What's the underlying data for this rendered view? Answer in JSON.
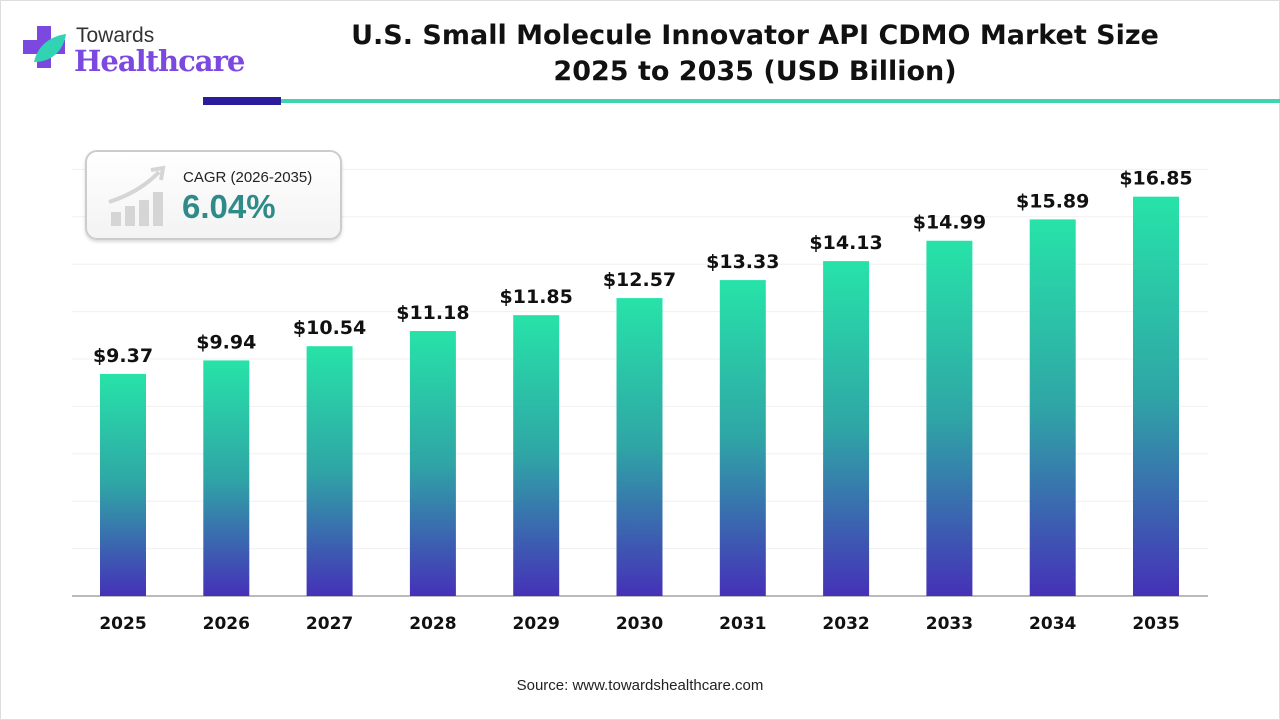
{
  "logo": {
    "line1": "Towards",
    "line2": "Healthcare"
  },
  "title": "U.S. Small Molecule Innovator API CDMO Market Size 2025 to 2035 (USD Billion)",
  "cagr": {
    "label": "CAGR (2026-2035)",
    "value": "6.04%"
  },
  "source": "Source: www.towardshealthcare.com",
  "colors": {
    "bar_top": "#27e3a8",
    "bar_bottom": "#4531b8",
    "cagr": "#2e8b88",
    "logo": "#7b48e0"
  },
  "chart_data": {
    "type": "bar",
    "title": "U.S. Small Molecule Innovator API CDMO Market Size 2025 to 2035 (USD Billion)",
    "categories": [
      "2025",
      "2026",
      "2027",
      "2028",
      "2029",
      "2030",
      "2031",
      "2032",
      "2033",
      "2034",
      "2035"
    ],
    "values": [
      9.37,
      9.94,
      10.54,
      11.18,
      11.85,
      12.57,
      13.33,
      14.13,
      14.99,
      15.89,
      16.85
    ],
    "labels": [
      "$9.37",
      "$9.94",
      "$10.54",
      "$11.18",
      "$11.85",
      "$12.57",
      "$13.33",
      "$14.13",
      "$14.99",
      "$15.89",
      "$16.85"
    ],
    "xlabel": "",
    "ylabel": "USD Billion",
    "ylim": [
      0,
      18
    ],
    "grid": true
  }
}
